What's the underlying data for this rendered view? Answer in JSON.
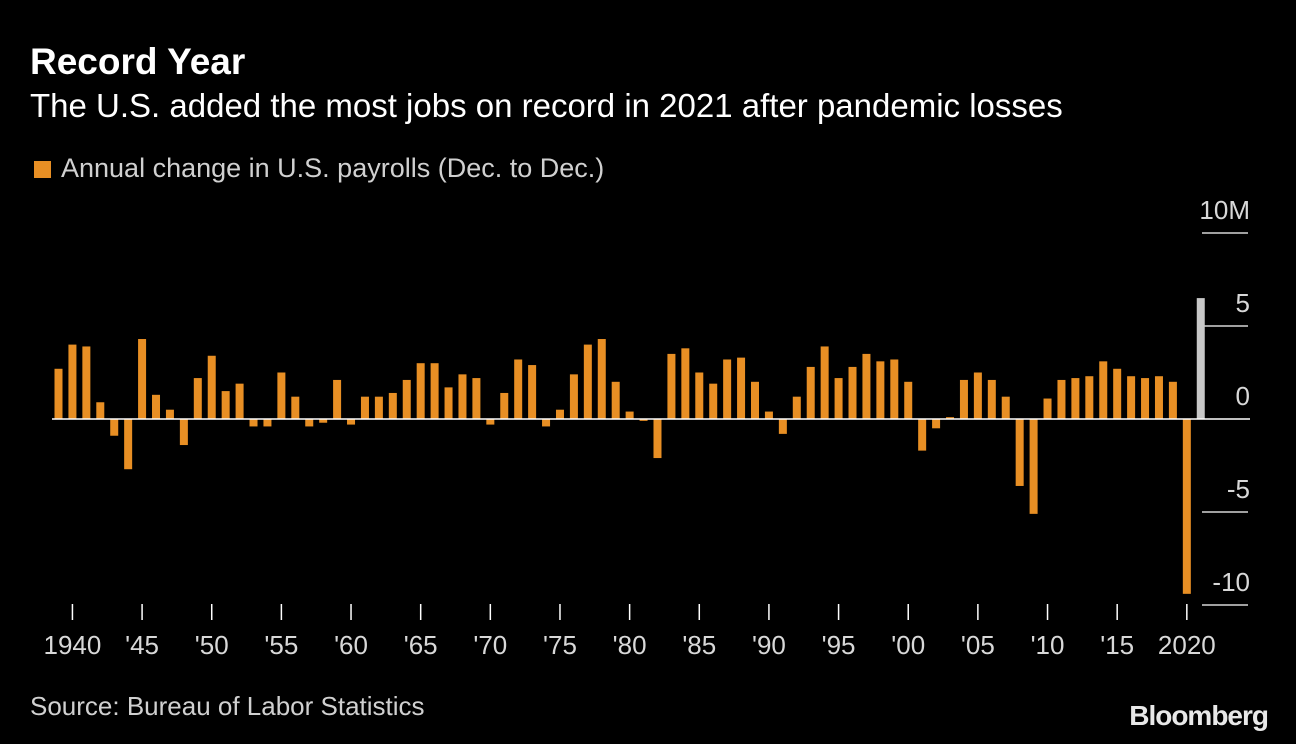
{
  "header": {
    "title": "Record Year",
    "subtitle": "The U.S. added the most jobs on record in 2021 after pandemic losses"
  },
  "legend": {
    "label": "Annual change in U.S. payrolls (Dec. to Dec.)",
    "color": "#e88f24"
  },
  "footer": {
    "source": "Source: Bureau of Labor Statistics",
    "brand": "Bloomberg"
  },
  "chart_data": {
    "type": "bar",
    "title": "Record Year",
    "subtitle": "The U.S. added the most jobs on record in 2021 after pandemic losses",
    "series_name": "Annual change in U.S. payrolls (Dec. to Dec.)",
    "unit": "millions of jobs",
    "bar_color": "#e88f24",
    "highlight_color": "#c8c8c8",
    "highlight_year": 2021,
    "ylim": [
      -10,
      10
    ],
    "yticks": [
      10,
      5,
      0,
      -5,
      -10
    ],
    "ytick_labels": [
      "10M",
      "5",
      "0",
      "-5",
      "-10"
    ],
    "xticks": [
      1940,
      1945,
      1950,
      1955,
      1960,
      1965,
      1970,
      1975,
      1980,
      1985,
      1990,
      1995,
      2000,
      2005,
      2010,
      2015,
      2020
    ],
    "xtick_labels": [
      "1940",
      "'45",
      "'50",
      "'55",
      "'60",
      "'65",
      "'70",
      "'75",
      "'80",
      "'85",
      "'90",
      "'95",
      "'00",
      "'05",
      "'10",
      "'15",
      "2020"
    ],
    "years": [
      1939,
      1940,
      1941,
      1942,
      1943,
      1944,
      1945,
      1946,
      1947,
      1948,
      1949,
      1950,
      1951,
      1952,
      1953,
      1954,
      1955,
      1956,
      1957,
      1958,
      1959,
      1960,
      1961,
      1962,
      1963,
      1964,
      1965,
      1966,
      1967,
      1968,
      1969,
      1970,
      1971,
      1972,
      1973,
      1974,
      1975,
      1976,
      1977,
      1978,
      1979,
      1980,
      1981,
      1982,
      1983,
      1984,
      1985,
      1986,
      1987,
      1988,
      1989,
      1990,
      1991,
      1992,
      1993,
      1994,
      1995,
      1996,
      1997,
      1998,
      1999,
      2000,
      2001,
      2002,
      2003,
      2004,
      2005,
      2006,
      2007,
      2008,
      2009,
      2010,
      2011,
      2012,
      2013,
      2014,
      2015,
      2016,
      2017,
      2018,
      2019,
      2020,
      2021
    ],
    "values": [
      2.7,
      4.0,
      3.9,
      0.9,
      -0.9,
      -2.7,
      4.3,
      1.3,
      0.5,
      -1.4,
      2.2,
      3.4,
      1.5,
      1.9,
      -0.4,
      -0.4,
      2.5,
      1.2,
      -0.4,
      -0.2,
      2.1,
      -0.3,
      1.2,
      1.2,
      1.4,
      2.1,
      3.0,
      3.0,
      1.7,
      2.4,
      2.2,
      -0.3,
      1.4,
      3.2,
      2.9,
      -0.4,
      0.5,
      2.4,
      4.0,
      4.3,
      2.0,
      0.4,
      -0.1,
      -2.1,
      3.5,
      3.8,
      2.5,
      1.9,
      3.2,
      3.3,
      2.0,
      0.4,
      -0.8,
      1.2,
      2.8,
      3.9,
      2.2,
      2.8,
      3.5,
      3.1,
      3.2,
      2.0,
      -1.7,
      -0.5,
      0.1,
      2.1,
      2.5,
      2.1,
      1.2,
      -3.6,
      -5.1,
      1.1,
      2.1,
      2.2,
      2.3,
      3.1,
      2.7,
      2.3,
      2.2,
      2.3,
      2.0,
      -9.4,
      6.5
    ]
  }
}
